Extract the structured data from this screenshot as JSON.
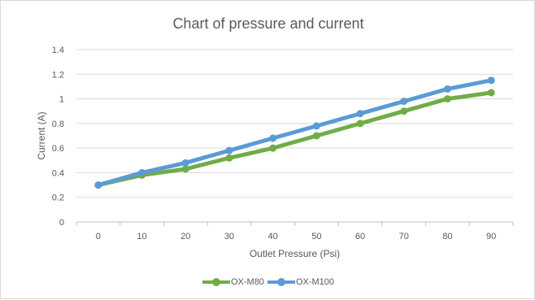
{
  "chart_data": {
    "type": "line",
    "title": "Chart of pressure and current",
    "xlabel": "Outlet Pressure (Psi)",
    "ylabel": "Current (A)",
    "categories": [
      "0",
      "10",
      "20",
      "30",
      "40",
      "50",
      "60",
      "70",
      "80",
      "90"
    ],
    "yticks": [
      "0",
      "0.2",
      "0.4",
      "0.6",
      "0.8",
      "1",
      "1.2",
      "1.4"
    ],
    "ylim": [
      0,
      1.4
    ],
    "grid": true,
    "legend_position": "bottom",
    "series": [
      {
        "name": "OX-M80",
        "color": "#70ad47",
        "values": [
          0.3,
          0.38,
          0.43,
          0.52,
          0.6,
          0.7,
          0.8,
          0.9,
          1.0,
          1.05
        ]
      },
      {
        "name": "OX-M100",
        "color": "#5b9bd5",
        "values": [
          0.3,
          0.4,
          0.48,
          0.58,
          0.68,
          0.78,
          0.88,
          0.98,
          1.08,
          1.15
        ]
      }
    ]
  }
}
